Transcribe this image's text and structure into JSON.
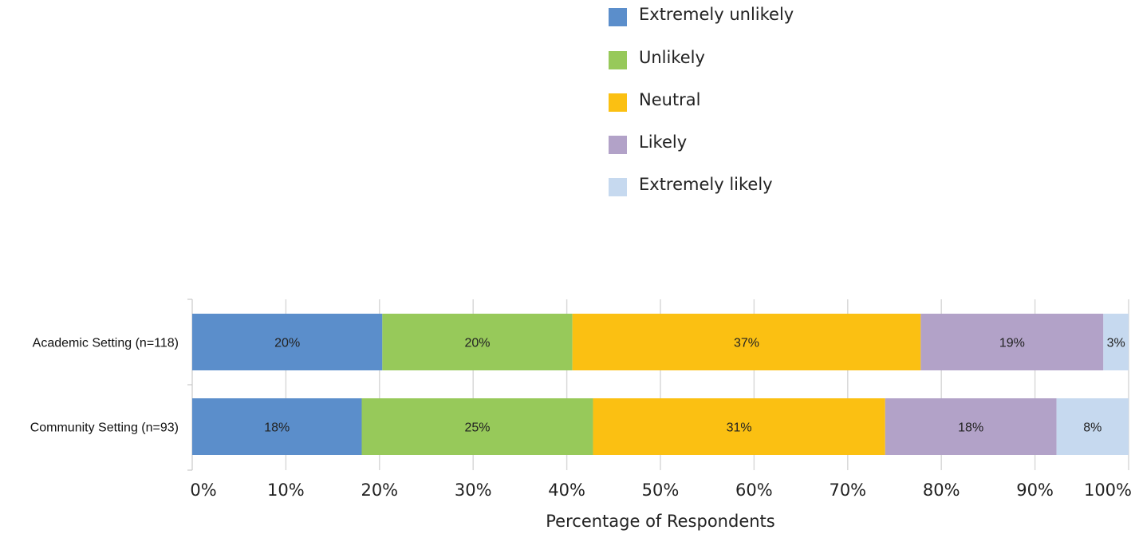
{
  "chart_data": {
    "type": "bar",
    "orientation": "horizontal",
    "stacked": true,
    "categories": [
      "Academic Setting (n=118)",
      "Community Setting (n=93)"
    ],
    "series": [
      {
        "name": "Extremely unlikely",
        "color": "#5b8ecb",
        "values": [
          20.3,
          18.1
        ],
        "labels": [
          "20%",
          "18%"
        ]
      },
      {
        "name": "Unlikely",
        "color": "#97c95a",
        "values": [
          20.3,
          24.7
        ],
        "labels": [
          "20%",
          "25%"
        ]
      },
      {
        "name": "Neutral",
        "color": "#fbc012",
        "values": [
          37.2,
          31.2
        ],
        "labels": [
          "37%",
          "31%"
        ]
      },
      {
        "name": "Likely",
        "color": "#b2a2c8",
        "values": [
          19.5,
          18.3
        ],
        "labels": [
          "19%",
          "18%"
        ]
      },
      {
        "name": "Extremely likely",
        "color": "#c6d9ef",
        "values": [
          2.7,
          7.7
        ],
        "labels": [
          "3%",
          "8%"
        ]
      }
    ],
    "xlim": [
      0,
      100
    ],
    "xticks": [
      "0%",
      "10%",
      "20%",
      "30%",
      "40%",
      "50%",
      "60%",
      "70%",
      "80%",
      "90%",
      "100%"
    ],
    "xlabel": "Percentage of Respondents",
    "ylabel": "",
    "title": "",
    "grid": true,
    "legend_position": "top-right"
  }
}
